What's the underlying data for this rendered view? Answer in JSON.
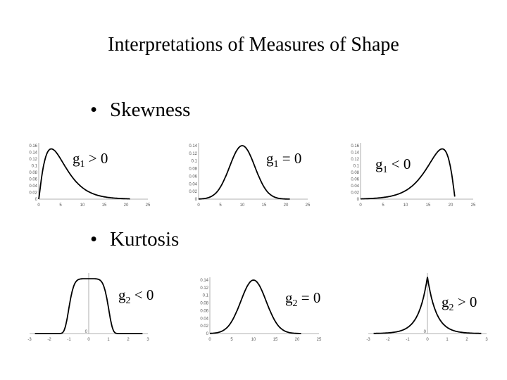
{
  "slide": {
    "title": "Interpretations of Measures of Shape",
    "bullets": [
      "Skewness",
      "Kurtosis"
    ],
    "bullet_marker": "•"
  },
  "chart_data": [
    {
      "type": "line",
      "shape": "right-skewed",
      "sym": "g",
      "sub": "1",
      "op": ">",
      "val": "0",
      "xticks": [
        "0",
        "5",
        "10",
        "15",
        "20",
        "25"
      ],
      "yticks": [
        "0",
        "0.02",
        "0.04",
        "0.06",
        "0.08",
        "0.1",
        "0.12",
        "0.14",
        "0.16"
      ],
      "xlim": [
        0,
        25
      ],
      "ylim": [
        0,
        0.16
      ],
      "y_axis_at": "left"
    },
    {
      "type": "line",
      "shape": "symmetric",
      "sym": "g",
      "sub": "1",
      "op": "=",
      "val": "0",
      "xticks": [
        "0",
        "5",
        "10",
        "15",
        "20",
        "25"
      ],
      "yticks": [
        "0",
        "0.02",
        "0.04",
        "0.06",
        "0.08",
        "0.1",
        "0.12",
        "0.14"
      ],
      "xlim": [
        0,
        25
      ],
      "ylim": [
        0,
        0.14
      ],
      "y_axis_at": "left"
    },
    {
      "type": "line",
      "shape": "left-skewed",
      "sym": "g",
      "sub": "1",
      "op": "<",
      "val": "0",
      "xticks": [
        "0",
        "5",
        "10",
        "15",
        "20",
        "25"
      ],
      "yticks": [
        "0",
        "0.02",
        "0.04",
        "0.06",
        "0.08",
        "0.1",
        "0.12",
        "0.14",
        "0.16"
      ],
      "xlim": [
        0,
        25
      ],
      "ylim": [
        0,
        0.16
      ],
      "y_axis_at": "left"
    },
    {
      "type": "line",
      "shape": "platykurtic",
      "sym": "g",
      "sub": "2",
      "op": "<",
      "val": "0",
      "xticks": [
        "-3",
        "-2",
        "-1",
        "0",
        "1",
        "2",
        "3"
      ],
      "yticks": [
        "0"
      ],
      "xlim": [
        -3,
        3
      ],
      "ylim": [
        0,
        1
      ],
      "y_axis_at": "zero"
    },
    {
      "type": "line",
      "shape": "mesokurtic",
      "sym": "g",
      "sub": "2",
      "op": "=",
      "val": "0",
      "xticks": [
        "0",
        "5",
        "10",
        "15",
        "20",
        "25"
      ],
      "yticks": [
        "0",
        "0.02",
        "0.04",
        "0.06",
        "0.08",
        "0.1",
        "0.12",
        "0.14"
      ],
      "xlim": [
        0,
        25
      ],
      "ylim": [
        0,
        0.14
      ],
      "y_axis_at": "left"
    },
    {
      "type": "line",
      "shape": "leptokurtic",
      "sym": "g",
      "sub": "2",
      "op": ">",
      "val": "0",
      "xticks": [
        "-3",
        "-2",
        "-1",
        "0",
        "1",
        "2",
        "3"
      ],
      "yticks": [
        "0"
      ],
      "xlim": [
        -3,
        3
      ],
      "ylim": [
        0,
        1
      ],
      "y_axis_at": "zero"
    }
  ]
}
